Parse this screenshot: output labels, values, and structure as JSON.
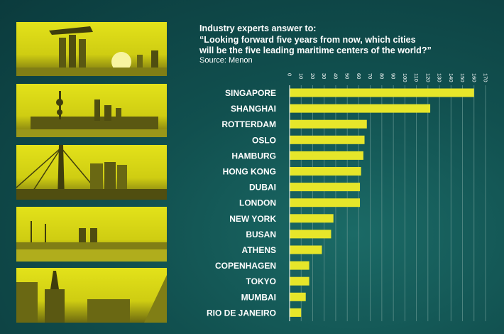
{
  "header": {
    "intro": "Industry experts answer to:",
    "question_line1": "“Looking forward five years from now, which cities",
    "question_line2": "will be the five leading maritime centers of the world?”",
    "source": "Source: Menon"
  },
  "photos": [
    {
      "name": "singapore-photo"
    },
    {
      "name": "shanghai-photo"
    },
    {
      "name": "rotterdam-photo"
    },
    {
      "name": "oslo-photo"
    },
    {
      "name": "hamburg-photo"
    }
  ],
  "colors": {
    "bar": "#e6e62a",
    "gridline": "#5c8f8a",
    "background": "#11504f"
  },
  "chart_data": {
    "type": "bar",
    "orientation": "horizontal",
    "title": "",
    "xlabel": "",
    "ylabel": "",
    "xlim": [
      0,
      170
    ],
    "ticks": [
      0,
      10,
      20,
      30,
      40,
      50,
      60,
      70,
      80,
      90,
      100,
      110,
      120,
      130,
      140,
      150,
      160,
      170
    ],
    "grid": true,
    "categories": [
      "SINGAPORE",
      "SHANGHAI",
      "ROTTERDAM",
      "OSLO",
      "HAMBURG",
      "HONG KONG",
      "DUBAI",
      "LONDON",
      "NEW YORK",
      "BUSAN",
      "ATHENS",
      "COPENHAGEN",
      "TOKYO",
      "MUMBAI",
      "RIO DE JANEIRO"
    ],
    "values": [
      160,
      122,
      67,
      65,
      64,
      62,
      61,
      61,
      38,
      36,
      28,
      17,
      17,
      14,
      10
    ]
  }
}
